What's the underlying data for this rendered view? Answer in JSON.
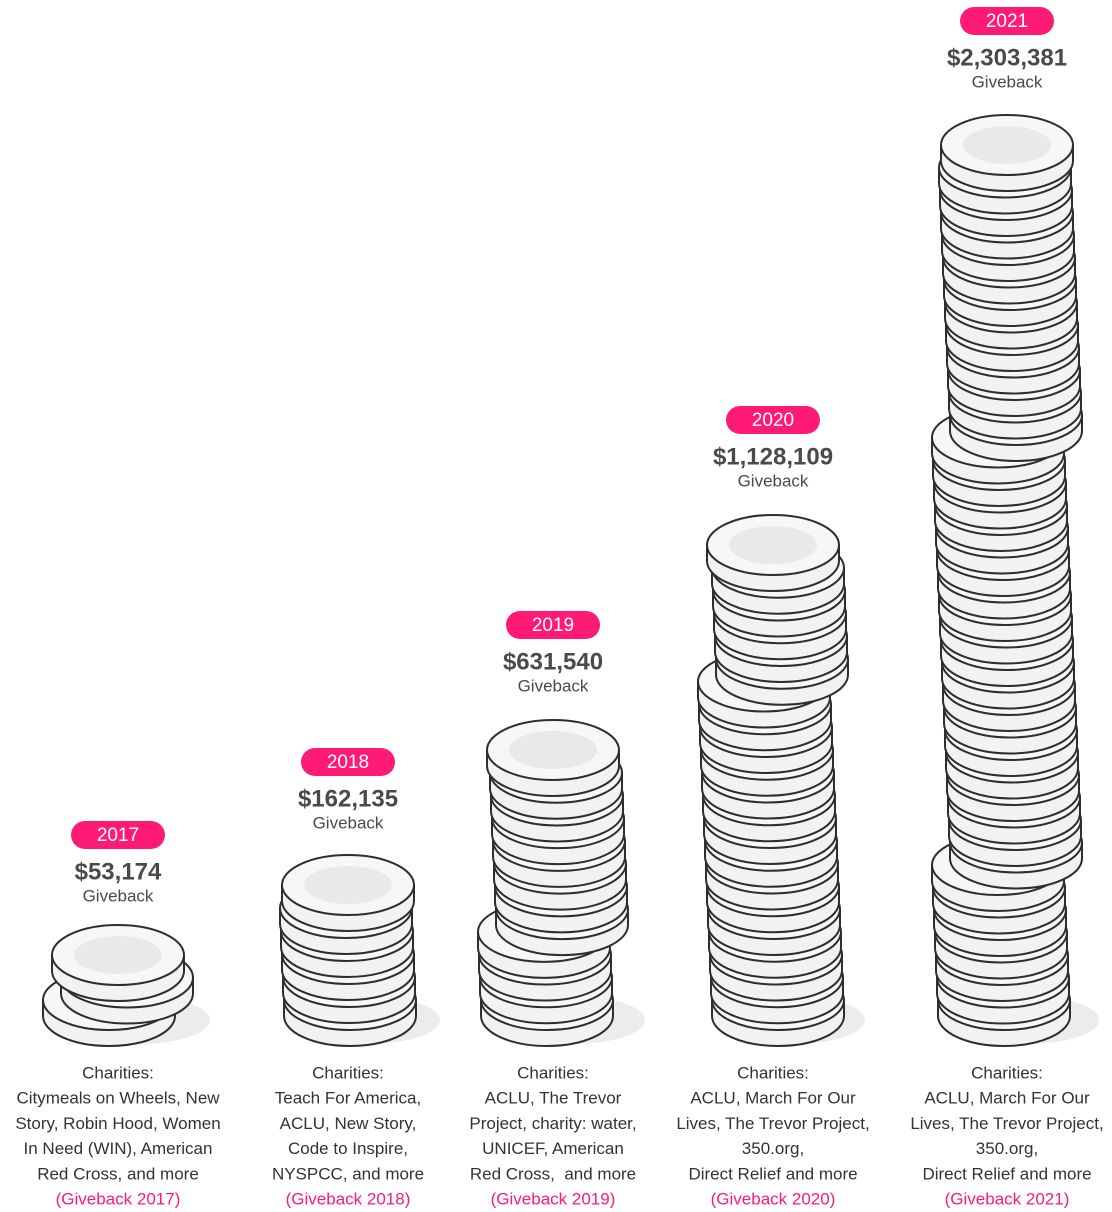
{
  "columns": [
    {
      "year": "2017",
      "amount": "$53,174",
      "label": "Giveback",
      "charities_heading": "Charities:",
      "charities": [
        "Citymeals on Wheels, New",
        "Story, Robin Hood, Women",
        "In Need (WIN), American",
        "Red Cross, and more"
      ],
      "link": "(Giveback 2017)"
    },
    {
      "year": "2018",
      "amount": "$162,135",
      "label": "Giveback",
      "charities_heading": "Charities:",
      "charities": [
        "Teach For America,",
        "ACLU, New Story,",
        "Code to Inspire,",
        "NYSPCC, and more"
      ],
      "link": "(Giveback 2018)"
    },
    {
      "year": "2019",
      "amount": "$631,540",
      "label": "Giveback",
      "charities_heading": "Charities:",
      "charities": [
        "ACLU, The Trevor",
        "Project, charity: water,",
        "UNICEF, American",
        "Red Cross,  and more"
      ],
      "link": "(Giveback 2019)"
    },
    {
      "year": "2020",
      "amount": "$1,128,109",
      "label": "Giveback",
      "charities_heading": "Charities:",
      "charities": [
        "ACLU, March For Our",
        "Lives, The Trevor Project,",
        "350.org,",
        "Direct Relief and more"
      ],
      "link": "(Giveback 2020)"
    },
    {
      "year": "2021",
      "amount": "$2,303,381",
      "label": "Giveback",
      "charities_heading": "Charities:",
      "charities": [
        "ACLU, March For Our",
        "Lives, The Trevor Project,",
        "350.org,",
        "Direct Relief and more"
      ],
      "link": "(Giveback 2021)"
    }
  ]
}
